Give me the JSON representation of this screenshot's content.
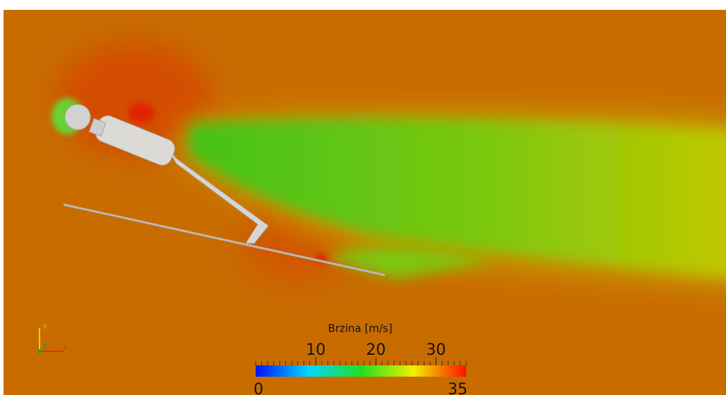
{
  "colorbar": {
    "title": "Brzina [m/s]",
    "range": [
      0,
      35
    ],
    "ticks": [
      10,
      20,
      30
    ]
  },
  "orientation_axes": {
    "labels": [
      "Y",
      "Z",
      "X"
    ]
  }
}
